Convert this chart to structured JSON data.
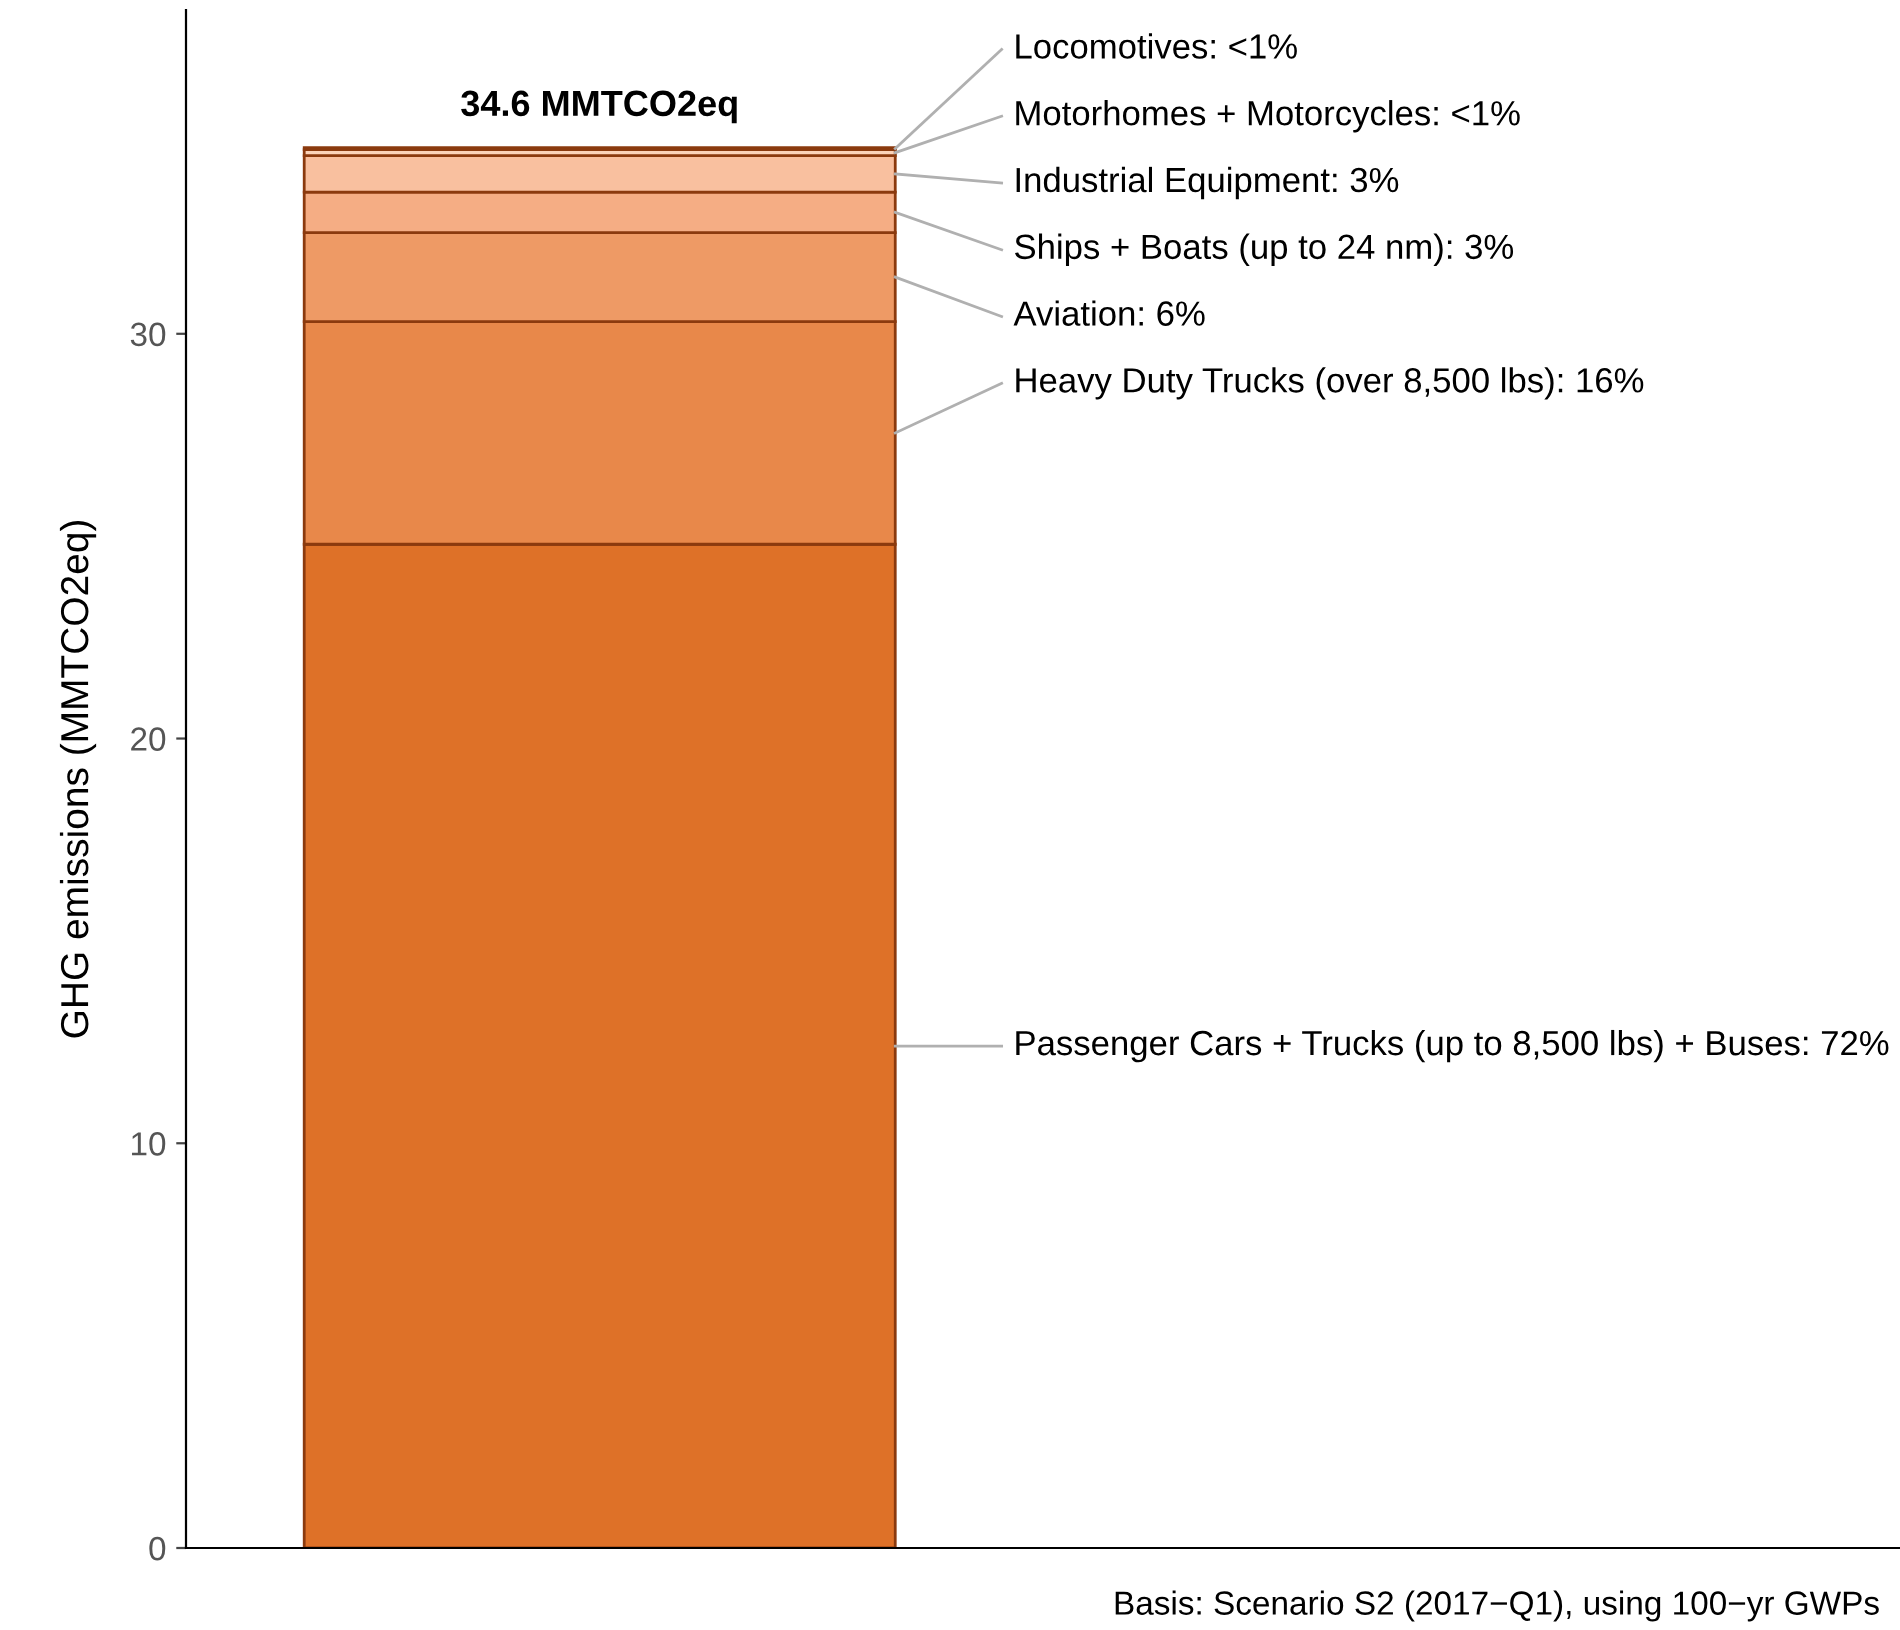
{
  "chart_data": {
    "type": "bar",
    "stacked": true,
    "categories": [
      null
    ],
    "series": [
      {
        "name": "Passenger Cars + Trucks (up to 8,500 lbs) + Buses: 72%",
        "color": "#de7128",
        "values": [
          24.8
        ]
      },
      {
        "name": "Heavy Duty Trucks (over 8,500 lbs): 16%",
        "color": "#e8884a",
        "values": [
          5.5
        ]
      },
      {
        "name": "Aviation: 6%",
        "color": "#ee9a65",
        "values": [
          2.2
        ]
      },
      {
        "name": "Ships + Boats (up to 24 nm): 3%",
        "color": "#f5ad84",
        "values": [
          1.0
        ]
      },
      {
        "name": "Industrial Equipment: 3%",
        "color": "#f9c09f",
        "values": [
          0.9
        ]
      },
      {
        "name": "Motorhomes + Motorcycles: <1%",
        "color": "#fbd3b9",
        "values": [
          0.15
        ]
      },
      {
        "name": "Locomotives: <1%",
        "color": "#fde3d0",
        "values": [
          0.05
        ]
      }
    ],
    "totals": [
      "34.6 MMTCO2eq"
    ],
    "ylabel": "GHG emissions (MMTCO2eq)",
    "ylim": [
      0,
      38
    ],
    "yticks": [
      0,
      10,
      20,
      30
    ],
    "tick_labels": "y",
    "grid": false,
    "legend": false,
    "annotations": [
      "Basis: Scenario S2 (2017−Q1), using 100−yr GWPs"
    ]
  }
}
